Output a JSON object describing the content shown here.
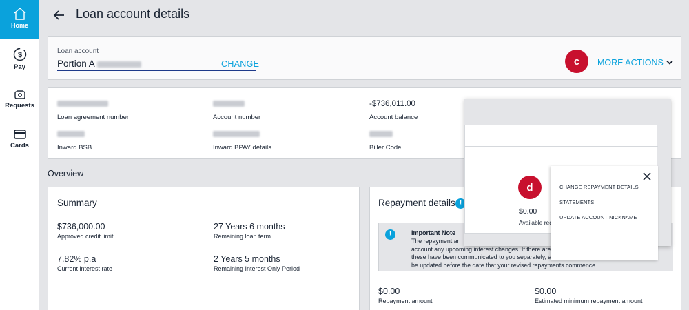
{
  "nav": {
    "home": "Home",
    "pay": "Pay",
    "requests": "Requests",
    "cards": "Cards"
  },
  "header": {
    "title": "Loan account details"
  },
  "loan": {
    "label": "Loan account",
    "value": "Portion A",
    "change": "CHANGE",
    "more_actions": "MORE ACTIONS",
    "badge": "c"
  },
  "details": {
    "agreement_label": "Loan agreement number",
    "account_number_label": "Account number",
    "balance_value": "-$736,011.00",
    "balance_label": "Account balance",
    "bsb_label": "Inward BSB",
    "bpay_label": "Inward BPAY details",
    "biller_label": "Biller Code"
  },
  "overview": {
    "title": "Overview"
  },
  "summary": {
    "title": "Summary",
    "credit_value": "$736,000.00",
    "credit_label": "Approved credit limit",
    "term_value": "27 Years 6 months",
    "term_label": "Remaining loan term",
    "rate_value": "7.82% p.a",
    "rate_label": "Current interest rate",
    "io_value": "2 Years 5 months",
    "io_label": "Remaining Interest Only Period"
  },
  "repayment": {
    "title": "Repayment details",
    "note_title": "Important Note",
    "note_text_1": "The repayment ar",
    "note_text_2": "account any upcoming interest changes. If there are any upcoming interest rate changes,",
    "note_text_3": "these have been communicated to you separately, and the repayment amounts below will",
    "note_text_4": "be updated before the date that your revised repayments commence.",
    "amount_value": "$0.00",
    "amount_label": "Repayment amount",
    "min_value": "$0.00",
    "min_label": "Estimated minimum repayment amount"
  },
  "overlay": {
    "badge": "d",
    "avail_value": "$0.00",
    "avail_label": "Available red",
    "menu": [
      "CHANGE REPAYMENT DETAILS",
      "STATEMENTS",
      "UPDATE ACCOUNT NICKNAME"
    ]
  },
  "colors": {
    "accent": "#0aa2dc",
    "badge": "#c8102e",
    "underline": "#1e3a8a"
  }
}
